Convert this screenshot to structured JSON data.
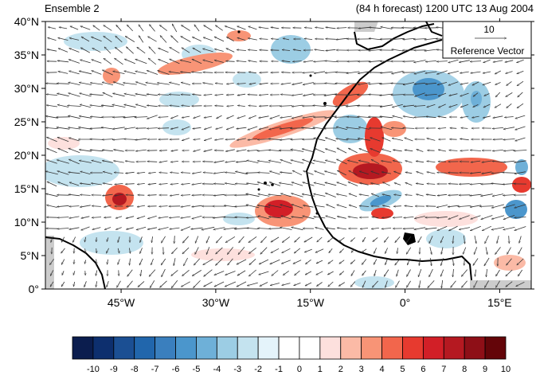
{
  "header": {
    "title_left": "Ensemble 2",
    "title_right": "(84 h forecast) 1200 UTC 13 Aug 2004"
  },
  "map": {
    "lon_range": [
      -57,
      20
    ],
    "lat_range": [
      0,
      40
    ],
    "lat_ticks": [
      {
        "value": 0,
        "label": "0°"
      },
      {
        "value": 5,
        "label": "5°N"
      },
      {
        "value": 10,
        "label": "10°N"
      },
      {
        "value": 15,
        "label": "15°N"
      },
      {
        "value": 20,
        "label": "20°N"
      },
      {
        "value": 25,
        "label": "25°N"
      },
      {
        "value": 30,
        "label": "30°N"
      },
      {
        "value": 35,
        "label": "35°N"
      },
      {
        "value": 40,
        "label": "40°N"
      }
    ],
    "lon_ticks": [
      {
        "value": -45,
        "label": "45°W"
      },
      {
        "value": -30,
        "label": "30°W"
      },
      {
        "value": -15,
        "label": "15°W"
      },
      {
        "value": 0,
        "label": "0°"
      },
      {
        "value": 15,
        "label": "15°E"
      }
    ]
  },
  "reference_vector": {
    "value": "10",
    "label": "Reference Vector"
  },
  "colorbar": {
    "labels": [
      "-10",
      "-9",
      "-8",
      "-7",
      "-6",
      "-5",
      "-4",
      "-3",
      "-2",
      "-1",
      "0",
      "1",
      "2",
      "3",
      "4",
      "5",
      "6",
      "7",
      "8",
      "9",
      "10"
    ],
    "colors": [
      "#0b1d4e",
      "#0d2f6e",
      "#1b4f93",
      "#2166ac",
      "#3a7fbe",
      "#4b96cc",
      "#6eb0d8",
      "#9ccde4",
      "#c4e3ef",
      "#e4f3fa",
      "#ffffff",
      "#ffffff",
      "#fde0dd",
      "#fbbaa6",
      "#f89476",
      "#f2664c",
      "#e73a2f",
      "#d21f27",
      "#b51921",
      "#8e0f17",
      "#640509"
    ]
  }
}
